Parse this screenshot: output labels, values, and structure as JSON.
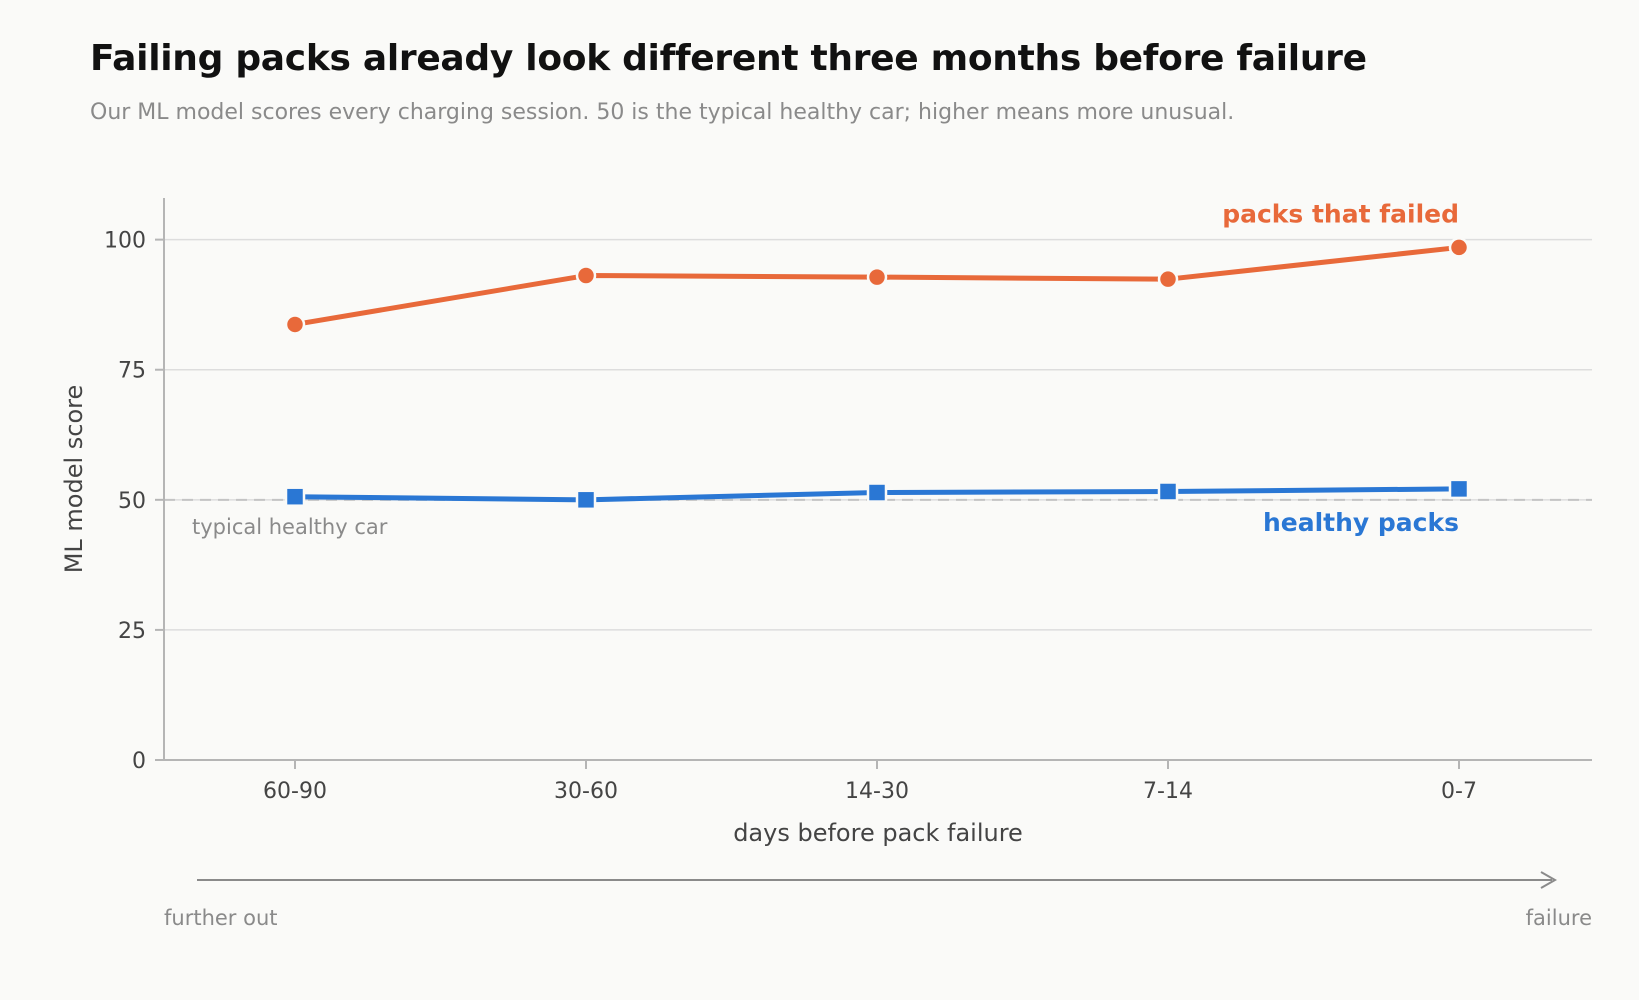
{
  "title": "Failing packs already look different three months before failure",
  "subtitle": "Our ML model scores every charging session. 50 is the typical healthy car; higher means more unusual.",
  "colors": {
    "failed": "#e8693a",
    "healthy": "#2a77d4",
    "grid": "#dddddd",
    "axis": "#b5b5b5",
    "reference": "#c4c4c4",
    "arrow": "#8a8a8a"
  },
  "chart_data": {
    "type": "line",
    "title": "Failing packs already look different three months before failure",
    "xlabel": "days before pack failure",
    "ylabel": "ML model score",
    "categories": [
      "60-90",
      "30-60",
      "14-30",
      "7-14",
      "0-7"
    ],
    "ylim": [
      0,
      108
    ],
    "yticks": [
      0,
      25,
      50,
      75,
      100
    ],
    "grid": true,
    "series": [
      {
        "name": "packs that failed",
        "key": "failed",
        "marker": "circle",
        "values": [
          83.7,
          93.1,
          92.8,
          92.4,
          98.5
        ]
      },
      {
        "name": "healthy packs",
        "key": "healthy",
        "marker": "square",
        "values": [
          50.6,
          50.0,
          51.4,
          51.6,
          52.1
        ]
      }
    ],
    "reference_line": {
      "value": 50,
      "label": "typical healthy car"
    }
  },
  "direction_arrow": {
    "left_label": "further out",
    "right_label": "failure"
  }
}
